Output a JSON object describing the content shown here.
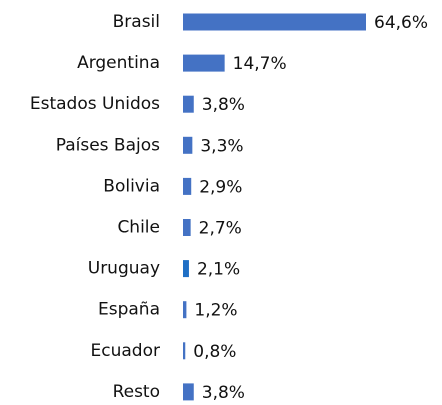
{
  "chart_data": {
    "type": "hbar",
    "categories": [
      "Brasil",
      "Argentina",
      "Estados Unidos",
      "Países Bajos",
      "Bolivia",
      "Chile",
      "Uruguay",
      "España",
      "Ecuador",
      "Resto"
    ],
    "values": [
      64.6,
      14.7,
      3.8,
      3.3,
      2.9,
      2.7,
      2.1,
      1.2,
      0.8,
      3.8
    ],
    "value_labels": [
      "64,6%",
      "14,7%",
      "3,8%",
      "3,3%",
      "2,9%",
      "2,7%",
      "2,1%",
      "1,2%",
      "0,8%",
      "3,8%"
    ],
    "colors": [
      "#4472c4",
      "#4472c4",
      "#4472c4",
      "#4472c4",
      "#4472c4",
      "#4472c4",
      "#1f6fc5",
      "#4472c4",
      "#4472c4",
      "#4472c4"
    ]
  }
}
